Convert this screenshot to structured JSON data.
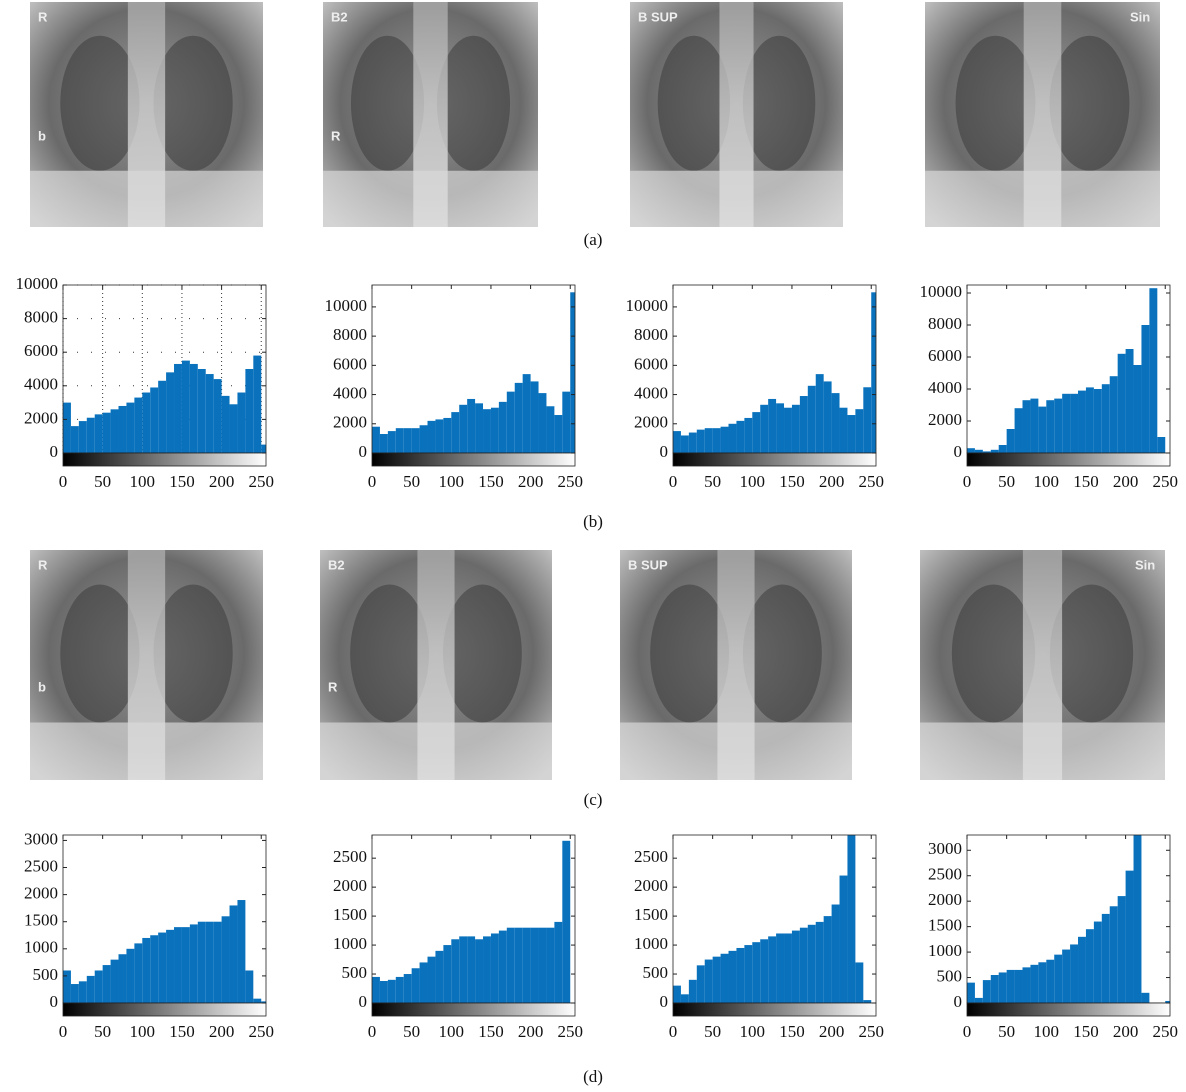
{
  "captions": [
    "(a)",
    "(b)",
    "(c)",
    "(d)"
  ],
  "images": [
    {
      "labels": [
        "R",
        "b"
      ]
    },
    {
      "labels": [
        "B2",
        "R"
      ]
    },
    {
      "labels": [
        "B SUP"
      ]
    },
    {
      "labels": [
        "Sin"
      ]
    },
    {
      "labels": [
        "R",
        "b"
      ]
    },
    {
      "labels": [
        "B2",
        "R"
      ]
    },
    {
      "labels": [
        "B SUP"
      ]
    },
    {
      "labels": [
        "Sin"
      ]
    }
  ],
  "chart_data": [
    {
      "type": "histogram",
      "color": "#0a72bd",
      "grid": true,
      "bins": [
        0,
        10,
        20,
        30,
        40,
        50,
        60,
        70,
        80,
        90,
        100,
        110,
        120,
        130,
        140,
        150,
        160,
        170,
        180,
        190,
        200,
        210,
        220,
        230,
        240,
        250,
        256
      ],
      "values": [
        3000,
        1600,
        1900,
        2100,
        2300,
        2400,
        2600,
        2800,
        3000,
        3300,
        3600,
        3900,
        4300,
        4800,
        5300,
        5500,
        5300,
        5000,
        4700,
        4400,
        3400,
        2900,
        3600,
        5000,
        5800,
        500
      ],
      "xlim": [
        0,
        256
      ],
      "xticks": [
        0,
        50,
        100,
        150,
        200,
        250
      ],
      "ylim": [
        0,
        10000
      ],
      "yticks": [
        0,
        2000,
        4000,
        6000,
        8000,
        10000
      ]
    },
    {
      "type": "histogram",
      "color": "#0a72bd",
      "grid": false,
      "bins": [
        0,
        10,
        20,
        30,
        40,
        50,
        60,
        70,
        80,
        90,
        100,
        110,
        120,
        130,
        140,
        150,
        160,
        170,
        180,
        190,
        200,
        210,
        220,
        230,
        240,
        250,
        256
      ],
      "values": [
        1800,
        1300,
        1500,
        1700,
        1700,
        1700,
        1900,
        2200,
        2300,
        2400,
        2800,
        3300,
        3700,
        3400,
        3000,
        3100,
        3500,
        4200,
        4800,
        5400,
        4900,
        4100,
        3200,
        2600,
        4200,
        11000
      ],
      "xlim": [
        0,
        256
      ],
      "xticks": [
        0,
        50,
        100,
        150,
        200,
        250
      ],
      "ylim": [
        0,
        11500
      ],
      "yticks": [
        0,
        2000,
        4000,
        6000,
        8000,
        10000
      ]
    },
    {
      "type": "histogram",
      "color": "#0a72bd",
      "grid": false,
      "bins": [
        0,
        10,
        20,
        30,
        40,
        50,
        60,
        70,
        80,
        90,
        100,
        110,
        120,
        130,
        140,
        150,
        160,
        170,
        180,
        190,
        200,
        210,
        220,
        230,
        240,
        250,
        256
      ],
      "values": [
        1500,
        1200,
        1400,
        1600,
        1700,
        1700,
        1800,
        2000,
        2200,
        2400,
        2800,
        3300,
        3700,
        3400,
        3100,
        3300,
        3900,
        4600,
        5400,
        4900,
        4100,
        3100,
        2600,
        3000,
        4500,
        11000
      ],
      "xlim": [
        0,
        256
      ],
      "xticks": [
        0,
        50,
        100,
        150,
        200,
        250
      ],
      "ylim": [
        0,
        11500
      ],
      "yticks": [
        0,
        2000,
        4000,
        6000,
        8000,
        10000
      ]
    },
    {
      "type": "histogram",
      "color": "#0a72bd",
      "grid": false,
      "bins": [
        0,
        10,
        20,
        30,
        40,
        50,
        60,
        70,
        80,
        90,
        100,
        110,
        120,
        130,
        140,
        150,
        160,
        170,
        180,
        190,
        200,
        210,
        220,
        230,
        240,
        250,
        256
      ],
      "values": [
        300,
        200,
        100,
        200,
        500,
        1500,
        2800,
        3300,
        3400,
        2900,
        3300,
        3400,
        3700,
        3700,
        3900,
        4100,
        4000,
        4300,
        4800,
        6200,
        6500,
        5500,
        8000,
        10300,
        1000,
        0
      ],
      "xlim": [
        0,
        256
      ],
      "xticks": [
        0,
        50,
        100,
        150,
        200,
        250
      ],
      "ylim": [
        0,
        10500
      ],
      "yticks": [
        0,
        2000,
        4000,
        6000,
        8000,
        10000
      ]
    },
    {
      "type": "histogram",
      "color": "#0a72bd",
      "grid": false,
      "bins": [
        0,
        10,
        20,
        30,
        40,
        50,
        60,
        70,
        80,
        90,
        100,
        110,
        120,
        130,
        140,
        150,
        160,
        170,
        180,
        190,
        200,
        210,
        220,
        230,
        240,
        250,
        256
      ],
      "values": [
        600,
        350,
        400,
        500,
        600,
        700,
        800,
        900,
        1000,
        1100,
        1200,
        1250,
        1300,
        1350,
        1400,
        1400,
        1450,
        1500,
        1500,
        1500,
        1600,
        1800,
        1900,
        600,
        80,
        30
      ],
      "xlim": [
        0,
        256
      ],
      "xticks": [
        0,
        50,
        100,
        150,
        200,
        250
      ],
      "ylim": [
        0,
        3100
      ],
      "yticks": [
        0,
        500,
        1000,
        1500,
        2000,
        2500,
        3000
      ]
    },
    {
      "type": "histogram",
      "color": "#0a72bd",
      "grid": false,
      "bins": [
        0,
        10,
        20,
        30,
        40,
        50,
        60,
        70,
        80,
        90,
        100,
        110,
        120,
        130,
        140,
        150,
        160,
        170,
        180,
        190,
        200,
        210,
        220,
        230,
        240,
        250,
        256
      ],
      "values": [
        450,
        380,
        400,
        450,
        500,
        600,
        700,
        800,
        900,
        1000,
        1100,
        1150,
        1150,
        1100,
        1150,
        1200,
        1250,
        1300,
        1300,
        1300,
        1300,
        1300,
        1300,
        1400,
        2800,
        0
      ],
      "xlim": [
        0,
        256
      ],
      "xticks": [
        0,
        50,
        100,
        150,
        200,
        250
      ],
      "ylim": [
        0,
        2900
      ],
      "yticks": [
        0,
        500,
        1000,
        1500,
        2000,
        2500
      ]
    },
    {
      "type": "histogram",
      "color": "#0a72bd",
      "grid": false,
      "bins": [
        0,
        10,
        20,
        30,
        40,
        50,
        60,
        70,
        80,
        90,
        100,
        110,
        120,
        130,
        140,
        150,
        160,
        170,
        180,
        190,
        200,
        210,
        220,
        230,
        240,
        250,
        256
      ],
      "values": [
        300,
        150,
        400,
        650,
        750,
        800,
        850,
        900,
        950,
        1000,
        1050,
        1100,
        1150,
        1200,
        1200,
        1250,
        1300,
        1350,
        1400,
        1500,
        1700,
        2200,
        2900,
        700,
        50,
        0
      ],
      "xlim": [
        0,
        256
      ],
      "xticks": [
        0,
        50,
        100,
        150,
        200,
        250
      ],
      "ylim": [
        0,
        2900
      ],
      "yticks": [
        0,
        500,
        1000,
        1500,
        2000,
        2500
      ]
    },
    {
      "type": "histogram",
      "color": "#0a72bd",
      "grid": false,
      "bins": [
        0,
        10,
        20,
        30,
        40,
        50,
        60,
        70,
        80,
        90,
        100,
        110,
        120,
        130,
        140,
        150,
        160,
        170,
        180,
        190,
        200,
        210,
        220,
        230,
        240,
        250,
        256
      ],
      "values": [
        400,
        100,
        450,
        550,
        600,
        650,
        650,
        700,
        750,
        800,
        850,
        950,
        1050,
        1150,
        1300,
        1450,
        1600,
        1750,
        1900,
        2100,
        2600,
        3300,
        200,
        0,
        0,
        40
      ],
      "xlim": [
        0,
        256
      ],
      "xticks": [
        0,
        50,
        100,
        150,
        200,
        250
      ],
      "ylim": [
        0,
        3300
      ],
      "yticks": [
        0,
        500,
        1000,
        1500,
        2000,
        2500,
        3000
      ]
    }
  ]
}
